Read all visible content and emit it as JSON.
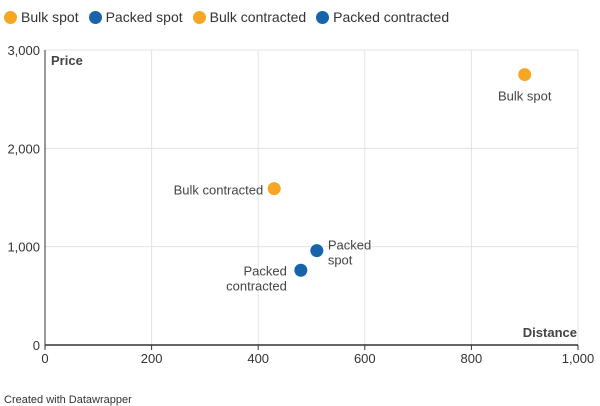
{
  "chart_data": {
    "type": "scatter",
    "xlim": [
      0,
      1000
    ],
    "ylim": [
      0,
      3000
    ],
    "xticks": [
      "0",
      "200",
      "400",
      "600",
      "800",
      "1,000"
    ],
    "yticks": [
      "0",
      "1,000",
      "2,000",
      "3,000"
    ],
    "xlabel": "Distance",
    "ylabel": "Price",
    "grid": true,
    "legend_position": "top-left",
    "series": [
      {
        "name": "Bulk spot",
        "color": "#f5a623",
        "points": [
          {
            "x": 900,
            "y": 2750,
            "label": [
              "Bulk spot"
            ]
          }
        ]
      },
      {
        "name": "Packed spot",
        "color": "#1764ab",
        "points": [
          {
            "x": 510,
            "y": 960,
            "label": [
              "Packed",
              "spot"
            ]
          }
        ]
      },
      {
        "name": "Bulk contracted",
        "color": "#f5a623",
        "points": [
          {
            "x": 430,
            "y": 1590,
            "label": [
              "Bulk contracted"
            ]
          }
        ]
      },
      {
        "name": "Packed contracted",
        "color": "#1764ab",
        "points": [
          {
            "x": 480,
            "y": 760,
            "label": [
              "Packed",
              "contracted"
            ]
          }
        ]
      }
    ]
  },
  "footer": {
    "credit": "Created with Datawrapper"
  }
}
